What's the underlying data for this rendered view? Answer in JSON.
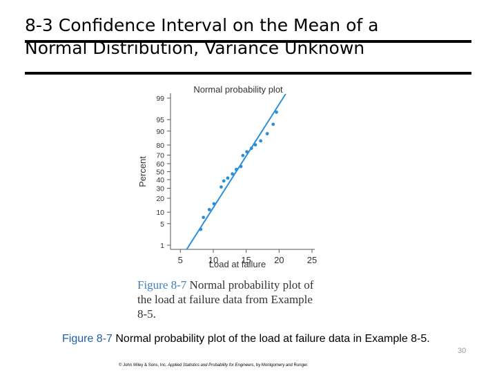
{
  "slide": {
    "title_line1": "8-3 Confidence Interval on the Mean of a",
    "title_line2": "Normal Distribution, Variance Unknown",
    "number": "30",
    "caption_label": "Figure 8-7",
    "caption_text": " Normal probability plot of the load at failure data in Example 8-5.",
    "scan_caption_label": "Figure 8-7",
    "scan_caption_text": " Normal probability plot of the load at failure data from Example 8-5.",
    "copyright_prefix": "© John Wiley & Sons, Inc. ",
    "copyright_title": "Applied Statistics and Probability for Engineers",
    "copyright_suffix": ", by Montgomery and Runger.",
    "accent_color": "#1f5fa8"
  },
  "chart_data": {
    "type": "scatter",
    "title": "Normal probability plot",
    "xlabel": "Load at failure",
    "ylabel": "Percent",
    "xlim": [
      3.5,
      25
    ],
    "xticks": [
      5,
      10,
      15,
      20,
      25
    ],
    "yticks": [
      1,
      5,
      10,
      20,
      30,
      40,
      50,
      60,
      70,
      80,
      90,
      95,
      99
    ],
    "yscale": "normal-probability",
    "grid": false,
    "point_color": "#2a8fd8",
    "line_color": "#2a8fd8",
    "points": [
      {
        "x": 8.1,
        "y": 3.4
      },
      {
        "x": 8.5,
        "y": 7.4
      },
      {
        "x": 9.4,
        "y": 11.5
      },
      {
        "x": 10.1,
        "y": 15.5
      },
      {
        "x": 11.2,
        "y": 31.4
      },
      {
        "x": 11.6,
        "y": 38.5
      },
      {
        "x": 12.2,
        "y": 42.0
      },
      {
        "x": 12.9,
        "y": 47.1
      },
      {
        "x": 13.5,
        "y": 52.8
      },
      {
        "x": 14.2,
        "y": 56.5
      },
      {
        "x": 14.5,
        "y": 69.5
      },
      {
        "x": 15.1,
        "y": 73.5
      },
      {
        "x": 15.8,
        "y": 77.0
      },
      {
        "x": 16.4,
        "y": 80.2
      },
      {
        "x": 17.2,
        "y": 83.5
      },
      {
        "x": 18.2,
        "y": 88.5
      },
      {
        "x": 19.1,
        "y": 93.3
      },
      {
        "x": 19.6,
        "y": 97.0
      }
    ],
    "fit_line": {
      "x": [
        5.6,
        21.0
      ],
      "y": [
        0.5,
        99.3
      ]
    }
  }
}
